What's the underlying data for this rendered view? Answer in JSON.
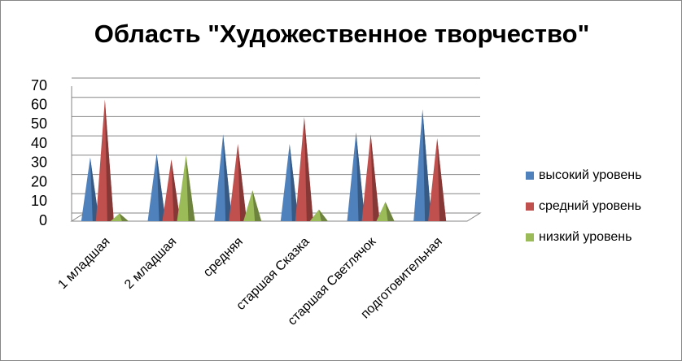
{
  "chart_data": {
    "type": "cone",
    "title": "Область \"Художественное творчество\"",
    "categories": [
      "1 младшая",
      "2 младшая",
      "средняя",
      "старшая Сказка",
      "старшая Светлячок",
      "подготовительная"
    ],
    "series": [
      {
        "name": "высокий уровень",
        "color": "#4f81bd",
        "values": [
          33,
          35,
          45,
          40,
          46,
          58
        ]
      },
      {
        "name": "средний уровень",
        "color": "#c0504d",
        "values": [
          63,
          32,
          40,
          54,
          45,
          43
        ]
      },
      {
        "name": "низкий уровень",
        "color": "#9bbb59",
        "values": [
          4,
          34,
          16,
          6,
          10,
          0
        ]
      }
    ],
    "ylim": [
      0,
      70
    ],
    "yticks": [
      0,
      10,
      20,
      30,
      40,
      50,
      60,
      70
    ],
    "grid": true,
    "legend": "right"
  }
}
